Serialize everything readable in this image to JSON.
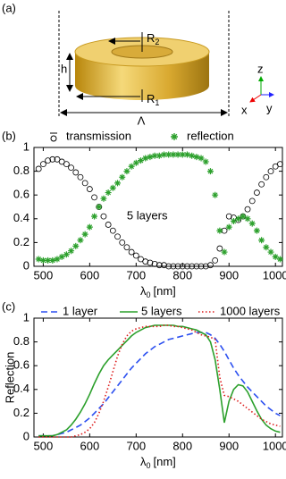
{
  "diagram": {
    "panel_label": "(a)",
    "r2": {
      "symbol": "R",
      "subscript": "2"
    },
    "h": "h",
    "r1": {
      "symbol": "R",
      "subscript": "1"
    },
    "period": "Λ",
    "axis_z": "z",
    "axis_x": "x",
    "axis_y": "y"
  },
  "chart_data": [
    {
      "type": "scatter",
      "panel_label": "(b)",
      "annotation": "5 layers",
      "legend": "above",
      "x_label": {
        "symbol": "λ",
        "subscript": "0",
        "unit": "[nm]"
      },
      "xlim": [
        480,
        1015
      ],
      "xticks": [
        500,
        600,
        700,
        800,
        900,
        1000
      ],
      "ylim": [
        0,
        1
      ],
      "yticks": [
        0,
        0.2,
        0.4,
        0.6,
        0.8,
        1
      ],
      "x": [
        490,
        500,
        510,
        520,
        530,
        540,
        550,
        560,
        570,
        580,
        590,
        600,
        610,
        620,
        630,
        640,
        650,
        660,
        670,
        680,
        690,
        700,
        710,
        720,
        730,
        740,
        750,
        760,
        770,
        780,
        790,
        800,
        810,
        820,
        830,
        840,
        850,
        860,
        870,
        880,
        890,
        900,
        910,
        920,
        930,
        940,
        950,
        960,
        970,
        980,
        990,
        1000,
        1010
      ],
      "series": [
        {
          "name": "transmission",
          "color": "#000000",
          "marker": "circle",
          "values": [
            0.82,
            0.86,
            0.89,
            0.9,
            0.9,
            0.88,
            0.86,
            0.83,
            0.79,
            0.75,
            0.7,
            0.65,
            0.58,
            0.5,
            0.42,
            0.35,
            0.3,
            0.25,
            0.2,
            0.16,
            0.12,
            0.09,
            0.06,
            0.04,
            0.03,
            0.02,
            0.01,
            0.01,
            0,
            0,
            0,
            0,
            0,
            0,
            0,
            0,
            0,
            0.01,
            0.05,
            0.15,
            0.3,
            0.42,
            0.41,
            0.39,
            0.42,
            0.48,
            0.55,
            0.62,
            0.69,
            0.75,
            0.8,
            0.84,
            0.86
          ]
        },
        {
          "name": "reflection",
          "color": "#2ca02c",
          "marker": "star",
          "values": [
            0.06,
            0.05,
            0.05,
            0.05,
            0.06,
            0.08,
            0.1,
            0.13,
            0.17,
            0.22,
            0.27,
            0.33,
            0.42,
            0.5,
            0.57,
            0.62,
            0.66,
            0.7,
            0.75,
            0.8,
            0.84,
            0.87,
            0.89,
            0.91,
            0.92,
            0.93,
            0.93,
            0.94,
            0.94,
            0.94,
            0.94,
            0.94,
            0.94,
            0.93,
            0.92,
            0.91,
            0.88,
            0.8,
            0.6,
            0.3,
            0.12,
            0.33,
            0.38,
            0.4,
            0.42,
            0.4,
            0.36,
            0.3,
            0.22,
            0.16,
            0.12,
            0.08,
            0.06
          ]
        }
      ]
    },
    {
      "type": "line",
      "panel_label": "(c)",
      "y_label": "Reflection",
      "legend": "top",
      "x_label": {
        "symbol": "λ",
        "subscript": "0",
        "unit": "[nm]"
      },
      "xlim": [
        480,
        1015
      ],
      "xticks": [
        500,
        600,
        700,
        800,
        900,
        1000
      ],
      "ylim": [
        0,
        1
      ],
      "yticks": [
        0,
        0.2,
        0.4,
        0.6,
        0.8,
        1
      ],
      "x": [
        490,
        500,
        510,
        520,
        530,
        540,
        550,
        560,
        570,
        580,
        590,
        600,
        610,
        620,
        630,
        640,
        650,
        660,
        670,
        680,
        690,
        700,
        710,
        720,
        730,
        740,
        750,
        760,
        770,
        780,
        790,
        800,
        810,
        820,
        830,
        840,
        850,
        860,
        870,
        880,
        890,
        900,
        910,
        920,
        930,
        940,
        950,
        960,
        970,
        980,
        990,
        1000,
        1010
      ],
      "series": [
        {
          "name": "1 layer",
          "color": "#2b4ff0",
          "line_style": "dashed",
          "values": [
            0.01,
            0.01,
            0.01,
            0.01,
            0.02,
            0.03,
            0.04,
            0.06,
            0.08,
            0.1,
            0.13,
            0.16,
            0.2,
            0.24,
            0.28,
            0.33,
            0.38,
            0.43,
            0.48,
            0.53,
            0.58,
            0.62,
            0.66,
            0.7,
            0.73,
            0.76,
            0.78,
            0.8,
            0.82,
            0.83,
            0.84,
            0.85,
            0.86,
            0.87,
            0.88,
            0.88,
            0.88,
            0.86,
            0.83,
            0.78,
            0.72,
            0.65,
            0.58,
            0.52,
            0.47,
            0.42,
            0.38,
            0.34,
            0.3,
            0.26,
            0.23,
            0.2,
            0.18
          ]
        },
        {
          "name": "5 layers",
          "color": "#2ca02c",
          "line_style": "solid",
          "values": [
            0.01,
            0.01,
            0.01,
            0.01,
            0.02,
            0.04,
            0.06,
            0.1,
            0.15,
            0.21,
            0.28,
            0.36,
            0.45,
            0.53,
            0.6,
            0.65,
            0.69,
            0.73,
            0.77,
            0.81,
            0.85,
            0.88,
            0.9,
            0.92,
            0.93,
            0.94,
            0.94,
            0.94,
            0.94,
            0.94,
            0.93,
            0.93,
            0.92,
            0.91,
            0.9,
            0.88,
            0.86,
            0.8,
            0.65,
            0.4,
            0.12,
            0.3,
            0.4,
            0.44,
            0.43,
            0.38,
            0.3,
            0.22,
            0.15,
            0.1,
            0.07,
            0.05,
            0.04
          ]
        },
        {
          "name": "1000 layers",
          "color": "#dd1c1c",
          "line_style": "dotted",
          "values": [
            0,
            0,
            0,
            0,
            0,
            0,
            0,
            0,
            0.01,
            0.02,
            0.04,
            0.07,
            0.12,
            0.2,
            0.3,
            0.42,
            0.55,
            0.68,
            0.78,
            0.85,
            0.89,
            0.91,
            0.92,
            0.93,
            0.93,
            0.93,
            0.93,
            0.94,
            0.94,
            0.93,
            0.93,
            0.92,
            0.91,
            0.9,
            0.88,
            0.86,
            0.85,
            0.84,
            0.82,
            0.5,
            0.35,
            0.34,
            0.32,
            0.3,
            0.27,
            0.24,
            0.21,
            0.18,
            0.15,
            0.13,
            0.11,
            0.1,
            0.09
          ]
        }
      ]
    }
  ]
}
